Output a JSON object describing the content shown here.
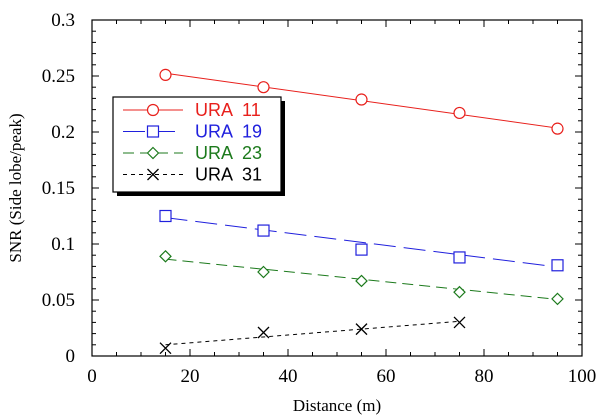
{
  "chart_data": {
    "type": "line",
    "xlabel": "Distance (m)",
    "ylabel": "SNR (Side lobe/peak)",
    "xlim": [
      0,
      100
    ],
    "ylim": [
      0,
      0.3
    ],
    "xticks": [
      0,
      20,
      40,
      60,
      80,
      100
    ],
    "xtick_labels": [
      "0",
      "20",
      "40",
      "60",
      "80",
      "100"
    ],
    "yticks": [
      0,
      0.05,
      0.1,
      0.15,
      0.2,
      0.25,
      0.3
    ],
    "ytick_labels": [
      "0",
      "0.05",
      "0.1",
      "0.15",
      "0.2",
      "0.25",
      "0.3"
    ],
    "grid": false,
    "legend_position": "upper-left",
    "series": [
      {
        "name": "URA  11",
        "color": "#e8201c",
        "marker": "circle",
        "dash": "solid",
        "x": [
          15,
          35,
          55,
          75,
          95
        ],
        "y": [
          0.251,
          0.24,
          0.229,
          0.217,
          0.203
        ],
        "fit": [
          0.2525,
          0.2035
        ]
      },
      {
        "name": "URA  19",
        "color": "#2020dd",
        "marker": "square",
        "dash": "long-dash",
        "x": [
          15,
          35,
          55,
          75,
          95
        ],
        "y": [
          0.125,
          0.112,
          0.095,
          0.088,
          0.081
        ],
        "fit": [
          0.1235,
          0.0795
        ]
      },
      {
        "name": "URA  23",
        "color": "#1c7a1c",
        "marker": "diamond",
        "dash": "dash",
        "x": [
          15,
          35,
          55,
          75,
          95
        ],
        "y": [
          0.089,
          0.075,
          0.067,
          0.057,
          0.051
        ],
        "fit": [
          0.0865,
          0.0505
        ]
      },
      {
        "name": "URA  31",
        "color": "#000000",
        "marker": "x",
        "dash": "short-dash",
        "x": [
          15,
          35,
          55,
          75
        ],
        "y": [
          0.007,
          0.021,
          0.024,
          0.03
        ],
        "fit": [
          0.01,
          0.031
        ]
      }
    ]
  }
}
